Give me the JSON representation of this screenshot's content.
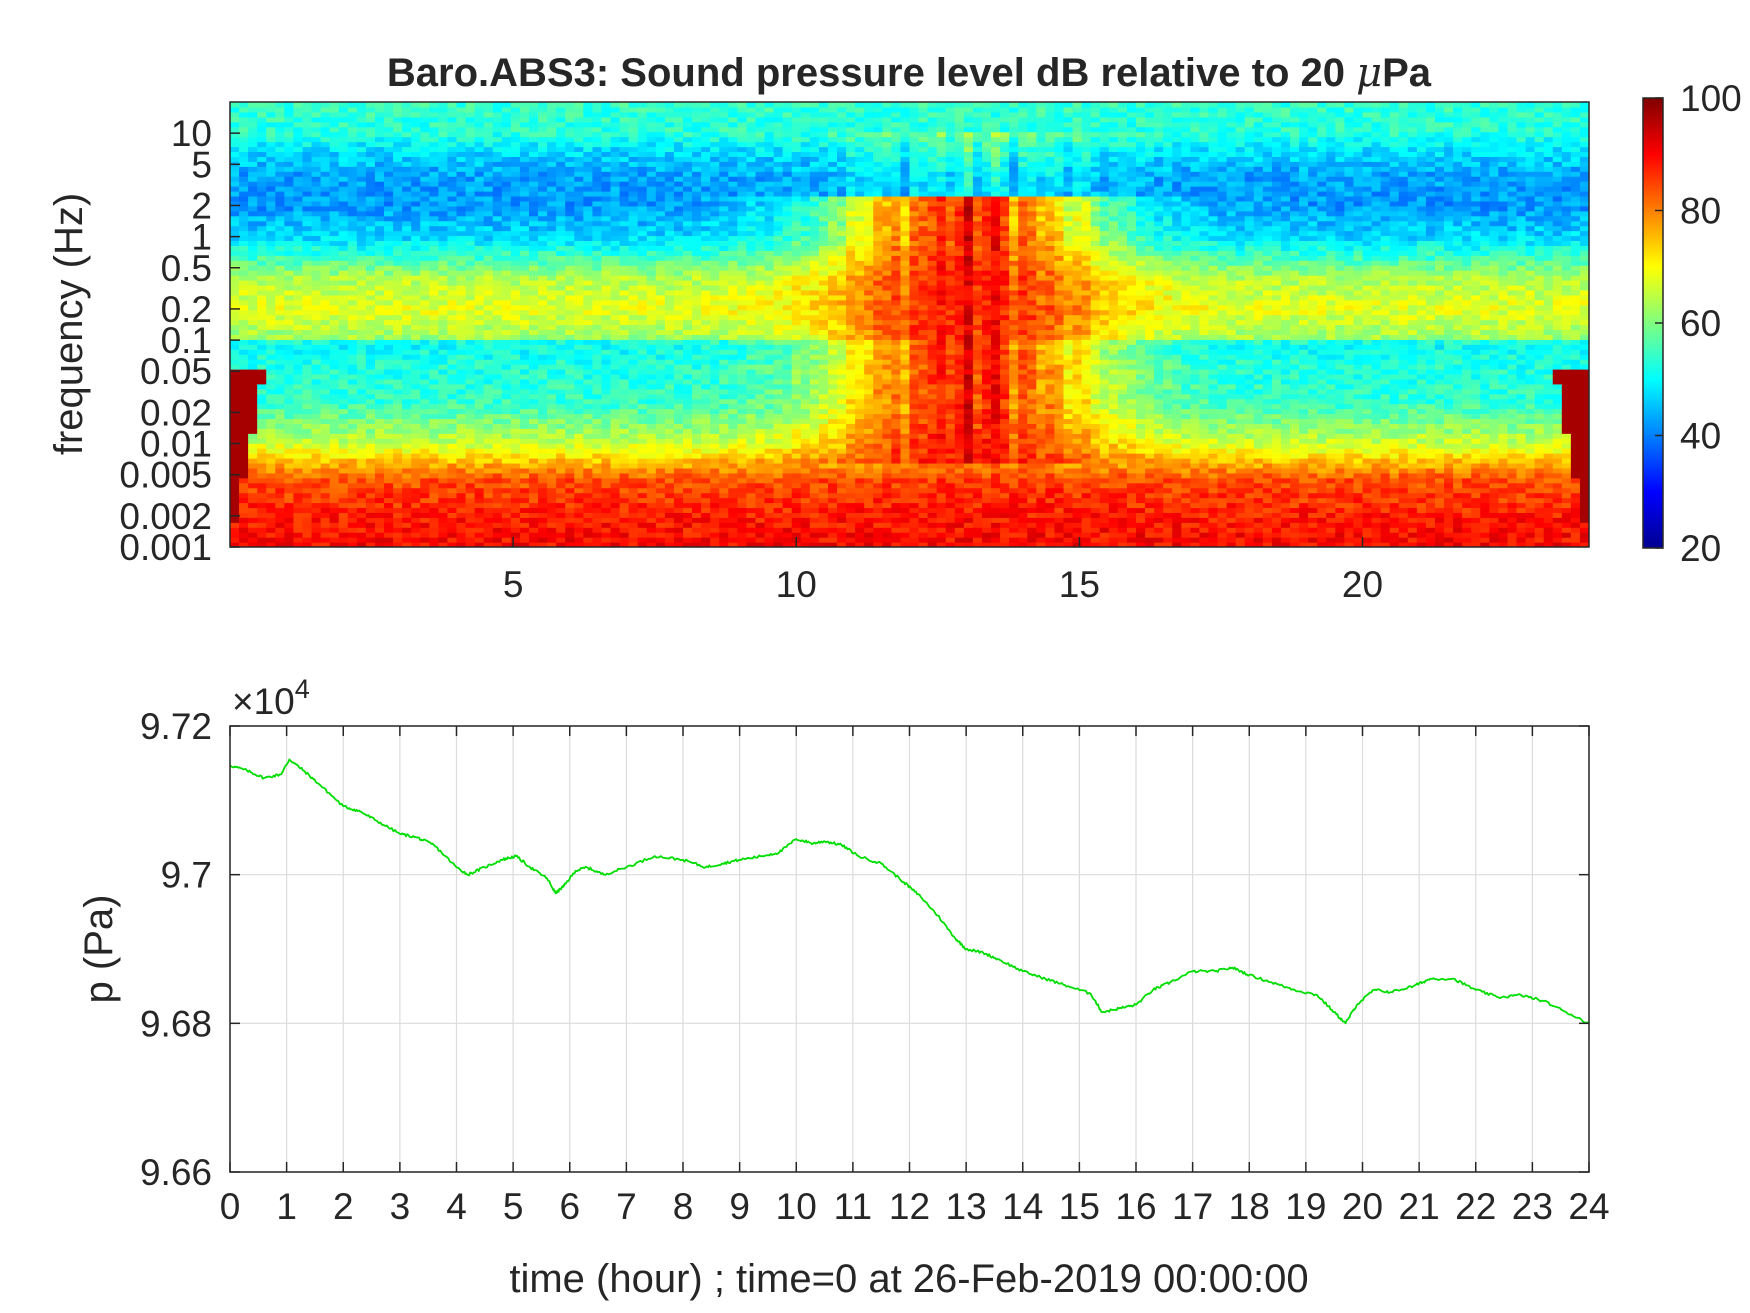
{
  "chart_data": [
    {
      "type": "heatmap",
      "title": "Baro.ABS3: Sound pressure level dB relative to 20 μPa",
      "title_main": "Baro.ABS3: Sound pressure level dB relative to 20 ",
      "title_mu": "μ",
      "title_unit": "Pa",
      "xlabel": "",
      "ylabel": "frequency (Hz)",
      "xlim": [
        0,
        24
      ],
      "ylim": [
        0.001,
        20
      ],
      "yscale": "log",
      "colormap": "jet",
      "xticks": [
        5,
        10,
        15,
        20
      ],
      "xtick_labels": [
        "5",
        "10",
        "15",
        "20"
      ],
      "yticks": [
        0.001,
        0.002,
        0.005,
        0.01,
        0.02,
        0.05,
        0.1,
        0.2,
        0.5,
        1,
        2,
        5,
        10
      ],
      "ytick_labels": [
        "0.001",
        "0.002",
        "0.005",
        "0.01",
        "0.02",
        "0.05",
        "0.1",
        "0.2",
        "0.5",
        "1",
        "2",
        "5",
        "10"
      ],
      "colorbar": {
        "range": [
          20,
          100
        ],
        "ticks": [
          20,
          40,
          60,
          80,
          100
        ],
        "tick_labels": [
          "20",
          "40",
          "60",
          "80",
          "100"
        ]
      },
      "bands": [
        {
          "freq_range": [
            10,
            20
          ],
          "level_db": 52
        },
        {
          "freq_range": [
            1,
            8
          ],
          "level_db": 42
        },
        {
          "freq_range": [
            0.2,
            0.5
          ],
          "level_db": 68
        },
        {
          "freq_range": [
            0.01,
            0.1
          ],
          "level_db": 52
        },
        {
          "freq_range": [
            0.001,
            0.005
          ],
          "level_db": 88
        }
      ],
      "event": {
        "time_range": [
          10.5,
          16.5
        ],
        "peak_time": 13,
        "level_db": 90
      }
    },
    {
      "type": "line",
      "xlabel": "time (hour) ; time=0 at 26-Feb-2019 00:00:00",
      "ylabel": "p (Pa)",
      "y_multiplier": "×10",
      "y_multiplier_exp": "4",
      "xlim": [
        0,
        24
      ],
      "ylim": [
        96600,
        97200
      ],
      "grid": true,
      "xticks": [
        0,
        1,
        2,
        3,
        4,
        5,
        6,
        7,
        8,
        9,
        10,
        11,
        12,
        13,
        14,
        15,
        16,
        17,
        18,
        19,
        20,
        21,
        22,
        23,
        24
      ],
      "xtick_labels": [
        "0",
        "1",
        "2",
        "3",
        "4",
        "5",
        "6",
        "7",
        "8",
        "9",
        "10",
        "11",
        "12",
        "13",
        "14",
        "15",
        "16",
        "17",
        "18",
        "19",
        "20",
        "21",
        "22",
        "23",
        "24"
      ],
      "yticks": [
        96600,
        96800,
        97000,
        97200
      ],
      "ytick_labels": [
        "9.66",
        "9.68",
        "9.7",
        "9.72"
      ],
      "series": [
        {
          "color": "#00dd00",
          "x": [
            0,
            0.3,
            0.6,
            0.9,
            1.05,
            1.3,
            1.6,
            2.0,
            2.3,
            2.6,
            3.0,
            3.3,
            3.6,
            4.0,
            4.2,
            4.5,
            4.8,
            5.05,
            5.3,
            5.6,
            5.75,
            5.9,
            6.1,
            6.3,
            6.6,
            7.0,
            7.5,
            8.0,
            8.4,
            8.7,
            9.0,
            9.4,
            9.7,
            10.0,
            10.3,
            10.5,
            10.8,
            11.1,
            11.5,
            11.9,
            12.2,
            12.5,
            12.8,
            13.0,
            13.3,
            13.6,
            14.0,
            14.4,
            14.8,
            15.2,
            15.4,
            15.7,
            16.0,
            16.3,
            16.6,
            17.0,
            17.4,
            17.7,
            18.0,
            18.4,
            18.8,
            19.2,
            19.5,
            19.7,
            19.9,
            20.2,
            20.5,
            20.9,
            21.2,
            21.6,
            22.0,
            22.4,
            22.8,
            23.2,
            23.6,
            24.0
          ],
          "y": [
            97147,
            97140,
            97130,
            97135,
            97155,
            97140,
            97120,
            97092,
            97085,
            97072,
            97055,
            97050,
            97040,
            97010,
            97000,
            97010,
            97020,
            97025,
            97010,
            96995,
            96975,
            96985,
            97005,
            97010,
            97000,
            97010,
            97025,
            97020,
            97010,
            97015,
            97020,
            97025,
            97030,
            97048,
            97042,
            97045,
            97040,
            97025,
            97015,
            96990,
            96970,
            96945,
            96915,
            96900,
            96895,
            96885,
            96870,
            96860,
            96850,
            96840,
            96815,
            96820,
            96825,
            96845,
            96855,
            96870,
            96870,
            96875,
            96865,
            96855,
            96845,
            96838,
            96815,
            96800,
            96825,
            96845,
            96842,
            96850,
            96860,
            96860,
            96845,
            96835,
            96838,
            96830,
            96815,
            96800
          ]
        }
      ]
    }
  ]
}
